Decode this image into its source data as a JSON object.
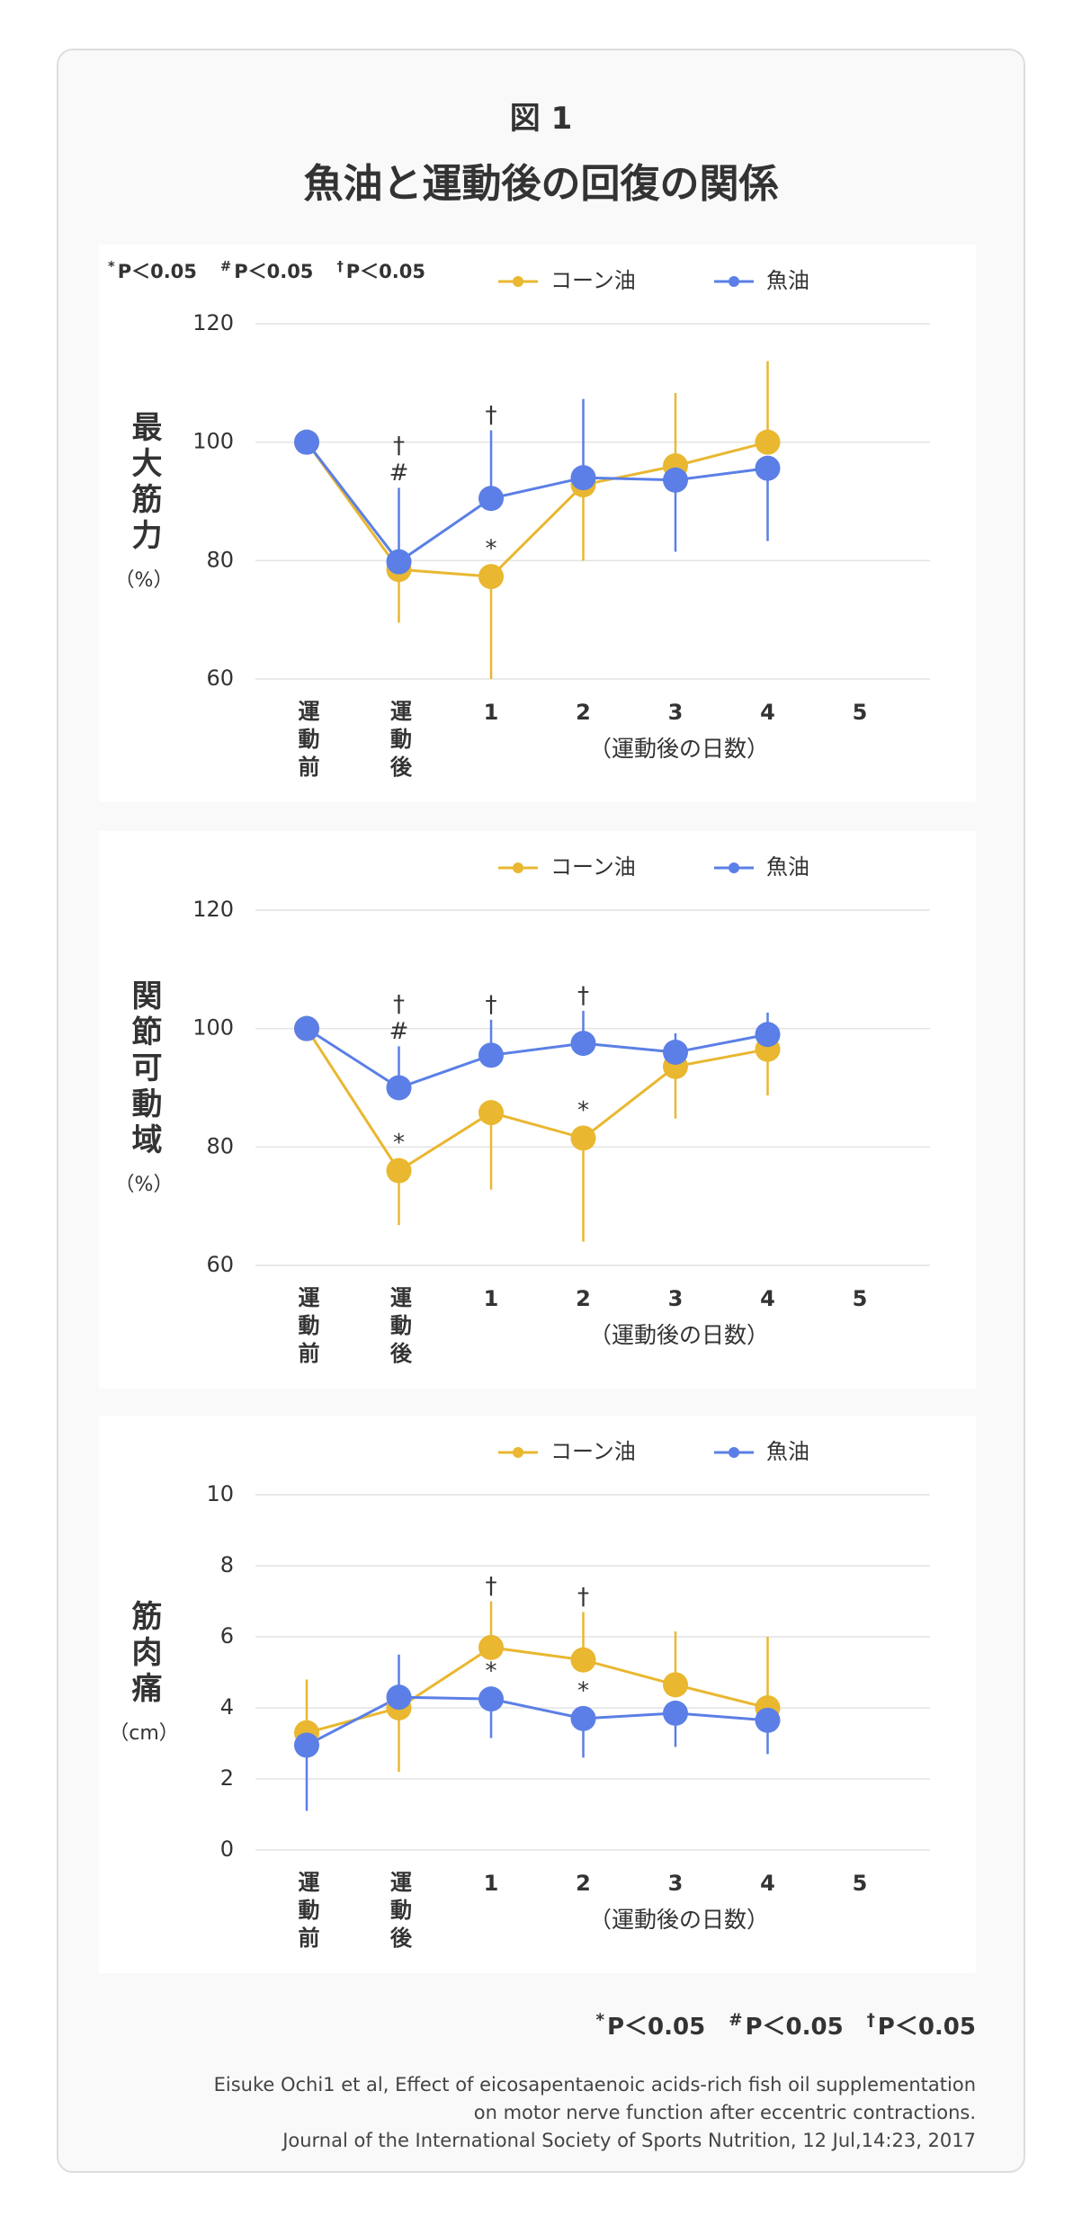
{
  "figure_label": "図 1",
  "title": "魚油と運動後の回復の関係",
  "significance": [
    {
      "symbol": "*",
      "text": "P＜0.05"
    },
    {
      "symbol": "#",
      "text": "P＜0.05"
    },
    {
      "symbol": "†",
      "text": "P＜0.05"
    }
  ],
  "citation": [
    "Eisuke Ochi1 et al, Effect of eicosapentaenoic acids-rich fish oil supplementation",
    "on motor nerve function after eccentric contractions.",
    "Journal of the International Society of Sports Nutrition, 12 Jul,14:23, 2017"
  ],
  "chart_data": [
    {
      "type": "line",
      "ylabel": "最大筋力",
      "yunit": "（%）",
      "xlabel": "（運動後の日数）",
      "categories": [
        "運動前",
        "運動後",
        "1",
        "2",
        "3",
        "4",
        "5"
      ],
      "ylim": [
        60,
        120
      ],
      "yticks": [
        60,
        80,
        100,
        120
      ],
      "grid": true,
      "legend": "upper right",
      "significance_legend": "upper left",
      "series": [
        {
          "name": "コーン油",
          "color": "#e9b730",
          "values": [
            100,
            78.5,
            77.3,
            92.8,
            96,
            100,
            null
          ],
          "errors": [
            null,
            9,
            17.3,
            12.8,
            12.3,
            13.7,
            null
          ]
        },
        {
          "name": "魚油",
          "color": "#5b7fe6",
          "values": [
            100,
            79.8,
            90.5,
            94,
            93.6,
            95.6,
            null
          ],
          "errors": [
            null,
            12.5,
            11.5,
            13.3,
            12.1,
            12.3,
            null
          ]
        }
      ],
      "annotations": [
        {
          "series": 1,
          "index": 1,
          "text": "#"
        },
        {
          "series": 1,
          "index": 1,
          "text": "†"
        },
        {
          "series": 1,
          "index": 2,
          "text": "†"
        },
        {
          "series": 0,
          "index": 2,
          "text": "*"
        }
      ]
    },
    {
      "type": "line",
      "ylabel": "関節可動域",
      "yunit": "（%）",
      "xlabel": "（運動後の日数）",
      "categories": [
        "運動前",
        "運動後",
        "1",
        "2",
        "3",
        "4",
        "5"
      ],
      "ylim": [
        60,
        120
      ],
      "yticks": [
        60,
        80,
        100,
        120
      ],
      "grid": true,
      "legend": "upper right",
      "series": [
        {
          "name": "コーン油",
          "color": "#e9b730",
          "values": [
            100,
            76,
            85.8,
            81.5,
            93.6,
            96.5,
            null
          ],
          "errors": [
            null,
            9.2,
            13,
            17.5,
            8.8,
            7.8,
            null
          ]
        },
        {
          "name": "魚油",
          "color": "#5b7fe6",
          "values": [
            100,
            90,
            95.5,
            97.5,
            96,
            99,
            null
          ],
          "errors": [
            null,
            7,
            6,
            5.5,
            3.2,
            3.7,
            null
          ]
        }
      ],
      "annotations": [
        {
          "series": 1,
          "index": 1,
          "text": "#"
        },
        {
          "series": 1,
          "index": 1,
          "text": "†"
        },
        {
          "series": 0,
          "index": 1,
          "text": "*"
        },
        {
          "series": 1,
          "index": 2,
          "text": "†"
        },
        {
          "series": 1,
          "index": 3,
          "text": "†"
        },
        {
          "series": 0,
          "index": 3,
          "text": "*"
        }
      ]
    },
    {
      "type": "line",
      "ylabel": "筋肉痛",
      "yunit": "（cm）",
      "xlabel": "（運動後の日数）",
      "categories": [
        "運動前",
        "運動後",
        "1",
        "2",
        "3",
        "4",
        "5"
      ],
      "ylim": [
        0,
        10
      ],
      "yticks": [
        0,
        2,
        4,
        6,
        8,
        10
      ],
      "grid": true,
      "legend": "upper right",
      "series": [
        {
          "name": "コーン油",
          "color": "#e9b730",
          "values": [
            3.3,
            4.0,
            5.7,
            5.35,
            4.65,
            4.0,
            null
          ],
          "errors": [
            1.5,
            1.8,
            1.3,
            1.35,
            1.5,
            2.0,
            null
          ]
        },
        {
          "name": "魚油",
          "color": "#5b7fe6",
          "values": [
            2.95,
            4.3,
            4.25,
            3.7,
            3.85,
            3.65,
            null
          ],
          "errors": [
            1.85,
            1.2,
            1.1,
            1.1,
            0.95,
            0.95,
            null
          ]
        }
      ],
      "annotations": [
        {
          "series": 0,
          "index": 2,
          "text": "†"
        },
        {
          "series": 1,
          "index": 2,
          "text": "*"
        },
        {
          "series": 0,
          "index": 3,
          "text": "†"
        },
        {
          "series": 1,
          "index": 3,
          "text": "*"
        }
      ]
    }
  ]
}
